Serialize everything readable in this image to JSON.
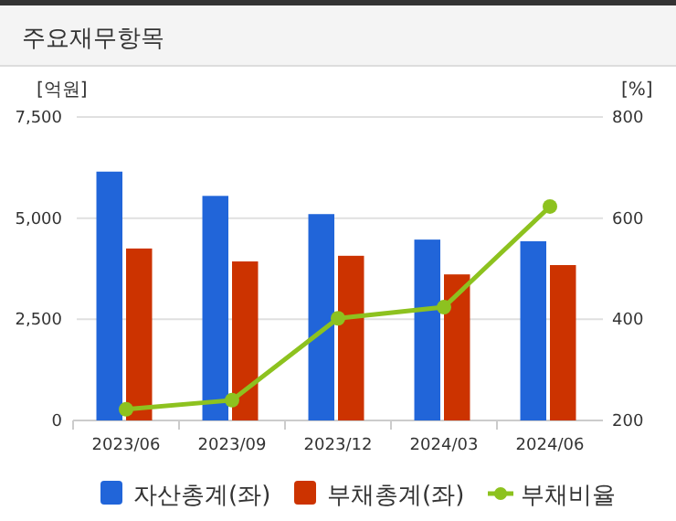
{
  "chart_data": {
    "type": "bar",
    "title": "주요재무항목",
    "ylabel": "[억원]",
    "y2label": "[%]",
    "categories": [
      "2023/06",
      "2023/09",
      "2023/12",
      "2024/03",
      "2024/06"
    ],
    "series": [
      {
        "name": "자산총계(좌)",
        "color": "#2165d9",
        "values": [
          6150,
          5550,
          5100,
          4470,
          4430
        ]
      },
      {
        "name": "부채총계(좌)",
        "color": "#cc3300",
        "values": [
          4250,
          3930,
          4070,
          3610,
          3840
        ]
      },
      {
        "name": "부채비율",
        "type": "line",
        "axis": "y2",
        "color": "#8dc21f",
        "values": [
          222,
          240,
          402,
          424,
          623
        ]
      }
    ],
    "ylim": [
      0,
      7500
    ],
    "yticks": [
      {
        "value": 0,
        "label": "0"
      },
      {
        "value": 2500,
        "label": "2,500"
      },
      {
        "value": 5000,
        "label": "5,000"
      },
      {
        "value": 7500,
        "label": "7,500"
      }
    ],
    "y2lim": [
      200,
      800
    ],
    "y2ticks": [
      200,
      400,
      600,
      800
    ],
    "grid": "y",
    "legend": "bottom",
    "marker": "circle"
  }
}
